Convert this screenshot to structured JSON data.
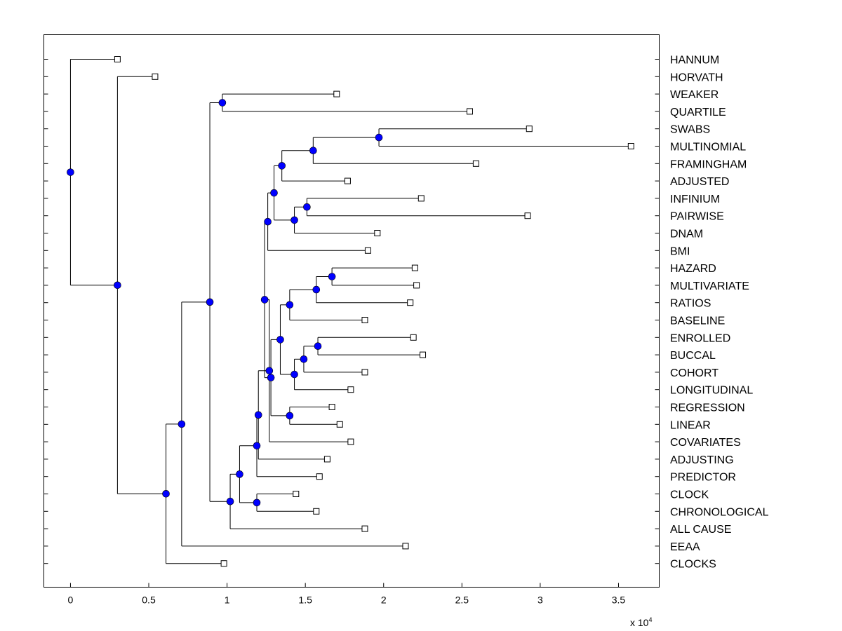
{
  "chart_data": {
    "type": "dendrogram",
    "xlabel": "",
    "ylabel": "",
    "x_scale_label": "x 10",
    "x_scale_exponent": "4",
    "xlim": [
      -0.17,
      3.76
    ],
    "x_ticks": [
      0,
      0.5,
      1,
      1.5,
      2,
      2.5,
      3,
      3.5
    ],
    "x_tick_labels": [
      "0",
      "0.5",
      "1",
      "1.5",
      "2",
      "2.5",
      "3",
      "3.5"
    ],
    "leaves": [
      {
        "label": "HANNUM",
        "x": 0.3
      },
      {
        "label": "HORVATH",
        "x": 0.54
      },
      {
        "label": "WEAKER",
        "x": 1.7
      },
      {
        "label": "QUARTILE",
        "x": 2.55
      },
      {
        "label": "SWABS",
        "x": 2.93
      },
      {
        "label": "MULTINOMIAL",
        "x": 3.58
      },
      {
        "label": "FRAMINGHAM",
        "x": 2.59
      },
      {
        "label": "ADJUSTED",
        "x": 1.77
      },
      {
        "label": "INFINIUM",
        "x": 2.24
      },
      {
        "label": "PAIRWISE",
        "x": 2.92
      },
      {
        "label": "DNAM",
        "x": 1.96
      },
      {
        "label": "BMI",
        "x": 1.9
      },
      {
        "label": "HAZARD",
        "x": 2.2
      },
      {
        "label": "MULTIVARIATE",
        "x": 2.21
      },
      {
        "label": "RATIOS",
        "x": 2.17
      },
      {
        "label": "BASELINE",
        "x": 1.88
      },
      {
        "label": "ENROLLED",
        "x": 2.19
      },
      {
        "label": "BUCCAL",
        "x": 2.25
      },
      {
        "label": "COHORT",
        "x": 1.88
      },
      {
        "label": "LONGITUDINAL",
        "x": 1.79
      },
      {
        "label": "REGRESSION",
        "x": 1.67
      },
      {
        "label": "LINEAR",
        "x": 1.72
      },
      {
        "label": "COVARIATES",
        "x": 1.79
      },
      {
        "label": "ADJUSTING",
        "x": 1.64
      },
      {
        "label": "PREDICTOR",
        "x": 1.59
      },
      {
        "label": "CLOCK",
        "x": 1.44
      },
      {
        "label": "CHRONOLOGICAL",
        "x": 1.57
      },
      {
        "label": "ALL CAUSE",
        "x": 1.88
      },
      {
        "label": "EEAA",
        "x": 2.14
      },
      {
        "label": "CLOCKS",
        "x": 0.98
      }
    ],
    "nodes": [
      {
        "id": "a",
        "x": 0.97,
        "children": [
          "L2",
          "L3"
        ]
      },
      {
        "id": "b",
        "x": 1.97,
        "children": [
          "L4",
          "L5"
        ]
      },
      {
        "id": "c",
        "x": 1.55,
        "children": [
          "b",
          "L6"
        ]
      },
      {
        "id": "d",
        "x": 1.35,
        "children": [
          "c",
          "L7"
        ]
      },
      {
        "id": "e",
        "x": 1.51,
        "children": [
          "L8",
          "L9"
        ]
      },
      {
        "id": "f",
        "x": 1.43,
        "children": [
          "e",
          "L10"
        ]
      },
      {
        "id": "g",
        "x": 1.3,
        "children": [
          "d",
          "f"
        ]
      },
      {
        "id": "h",
        "x": 1.26,
        "children": [
          "g",
          "L11"
        ]
      },
      {
        "id": "i",
        "x": 1.67,
        "children": [
          "L12",
          "L13"
        ]
      },
      {
        "id": "j",
        "x": 1.57,
        "children": [
          "i",
          "L14"
        ]
      },
      {
        "id": "k",
        "x": 1.4,
        "children": [
          "j",
          "L15"
        ]
      },
      {
        "id": "l",
        "x": 1.58,
        "children": [
          "L16",
          "L17"
        ]
      },
      {
        "id": "m",
        "x": 1.49,
        "children": [
          "l",
          "L18"
        ]
      },
      {
        "id": "n",
        "x": 1.43,
        "children": [
          "m",
          "L19"
        ]
      },
      {
        "id": "o",
        "x": 1.34,
        "children": [
          "k",
          "n"
        ]
      },
      {
        "id": "p",
        "x": 1.4,
        "children": [
          "L20",
          "L21"
        ]
      },
      {
        "id": "q",
        "x": 1.28,
        "children": [
          "o",
          "p"
        ]
      },
      {
        "id": "r",
        "x": 1.24,
        "children": [
          "h",
          "q"
        ]
      },
      {
        "id": "s",
        "x": 1.27,
        "children": [
          "r",
          "L22"
        ]
      },
      {
        "id": "t",
        "x": 1.2,
        "children": [
          "s",
          "L23"
        ]
      },
      {
        "id": "u",
        "x": 1.19,
        "children": [
          "t",
          "L24"
        ]
      },
      {
        "id": "v",
        "x": 1.19,
        "children": [
          "L25",
          "L26"
        ]
      },
      {
        "id": "w",
        "x": 1.08,
        "children": [
          "u",
          "v"
        ]
      },
      {
        "id": "x",
        "x": 1.02,
        "children": [
          "w",
          "L27"
        ]
      },
      {
        "id": "y",
        "x": 0.89,
        "children": [
          "a",
          "x"
        ]
      },
      {
        "id": "z",
        "x": 0.71,
        "children": [
          "y",
          "L28"
        ]
      },
      {
        "id": "aa",
        "x": 0.61,
        "children": [
          "z",
          "L29"
        ]
      },
      {
        "id": "ab",
        "x": 0.3,
        "children": [
          "L1",
          "aa"
        ]
      },
      {
        "id": "ac",
        "x": 0.0,
        "children": [
          "L0",
          "ab"
        ]
      }
    ],
    "marker_color": "#0000ff",
    "line_color": "#000000"
  }
}
